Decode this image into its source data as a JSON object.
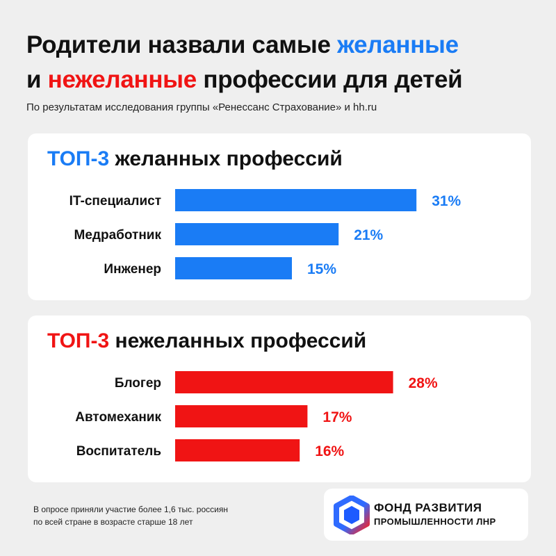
{
  "headline": {
    "line1_prefix": "Родители назвали самые ",
    "line1_accent": "желанные",
    "line2_prefix": "и ",
    "line2_accent": "нежеланные",
    "line2_suffix": " профессии для детей"
  },
  "subtitle": "По результатам исследования группы «Ренессанс Страхование» и hh.ru",
  "colors": {
    "blue": "#1a7cf5",
    "red": "#f01414",
    "background": "#efefef",
    "card": "#ffffff"
  },
  "chart_data": [
    {
      "type": "bar",
      "orientation": "horizontal",
      "title_accent": "ТОП-3",
      "title_rest": " желанных профессий",
      "categories": [
        "IT-специалист",
        "Медработник",
        "Инженер"
      ],
      "values": [
        31,
        21,
        15
      ],
      "value_labels": [
        "31%",
        "21%",
        "15%"
      ],
      "unit": "%",
      "color": "#1a7cf5"
    },
    {
      "type": "bar",
      "orientation": "horizontal",
      "title_accent": "ТОП-3",
      "title_rest": " нежеланных профессий",
      "categories": [
        "Блогер",
        "Автомеханик",
        "Воспитатель"
      ],
      "values": [
        28,
        17,
        16
      ],
      "value_labels": [
        "28%",
        "17%",
        "16%"
      ],
      "unit": "%",
      "color": "#f01414"
    }
  ],
  "footnote": {
    "line1": "В опросе приняли участие более 1,6 тыс. россиян",
    "line2": "по всей стране в возрасте старше 18 лет"
  },
  "logo": {
    "line1": "ФОНД РАЗВИТИЯ",
    "line2": "ПРОМЫШЛЕННОСТИ ЛНР",
    "icon": "hexagon-logo-icon"
  }
}
